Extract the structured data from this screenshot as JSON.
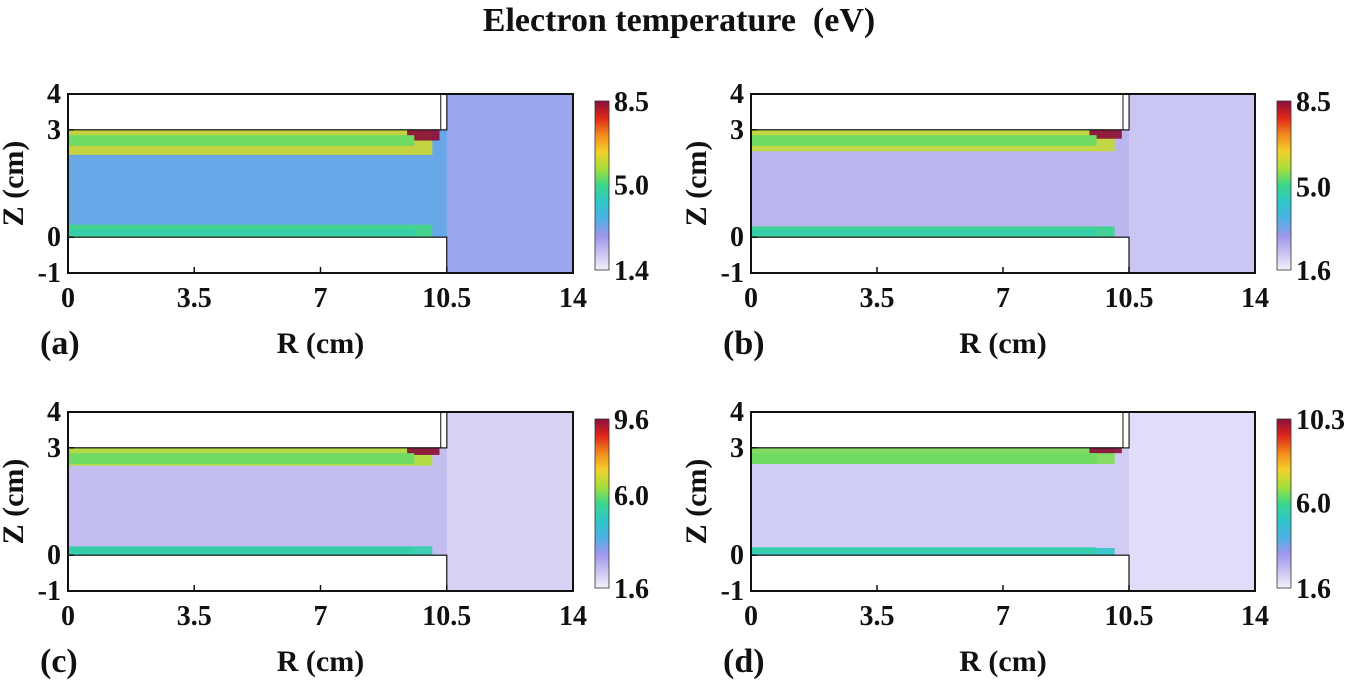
{
  "figure": {
    "title": "Electron temperature  (eV)"
  },
  "colors": {
    "colormap": [
      "#f4f1fb",
      "#c9c3f1",
      "#9f97ec",
      "#4fb0e6",
      "#2ec7c9",
      "#3ad68a",
      "#a6df3a",
      "#f4cf2a",
      "#f28a1c",
      "#e0261a",
      "#8b0f3a"
    ]
  },
  "chart_data": [
    {
      "panel": "(a)",
      "type": "heatmap",
      "xlabel": "R (cm)",
      "ylabel": "Z (cm)",
      "xlim": [
        0,
        14
      ],
      "ylim": [
        -1,
        4
      ],
      "xticks": [
        "0",
        "3.5",
        "7",
        "10.5",
        "14"
      ],
      "yticks": [
        "4",
        "3",
        "0",
        "-1"
      ],
      "colorbar": {
        "min": 1.4,
        "max": 8.5,
        "ticks": [
          "8.5",
          "5.0",
          "1.4"
        ]
      },
      "background_value": 3.3,
      "field": [
        {
          "r0": 0,
          "r1": 10.1,
          "z0": 2.3,
          "z1": 3.0,
          "value": 6.0
        },
        {
          "r0": 0,
          "r1": 10.1,
          "z0": 0.0,
          "z1": 0.35,
          "value": 5.0
        },
        {
          "r0": 9.4,
          "r1": 10.3,
          "z0": 2.7,
          "z1": 3.0,
          "value": 8.5
        },
        {
          "r0": 10.5,
          "r1": 14,
          "z0": -1,
          "z1": 4,
          "value": 2.6
        }
      ]
    },
    {
      "panel": "(b)",
      "type": "heatmap",
      "xlabel": "R (cm)",
      "ylabel": "Z (cm)",
      "xlim": [
        0,
        14
      ],
      "ylim": [
        -1,
        4
      ],
      "xticks": [
        "0",
        "3.5",
        "7",
        "10.5",
        "14"
      ],
      "yticks": [
        "4",
        "3",
        "0",
        "-1"
      ],
      "colorbar": {
        "min": 1.6,
        "max": 8.5,
        "ticks": [
          "8.5",
          "5.0",
          "1.6"
        ]
      },
      "background_value": 2.5,
      "field": [
        {
          "r0": 0,
          "r1": 10.1,
          "z0": 2.4,
          "z1": 3.0,
          "value": 6.0
        },
        {
          "r0": 0,
          "r1": 10.1,
          "z0": 0.0,
          "z1": 0.3,
          "value": 5.0
        },
        {
          "r0": 9.4,
          "r1": 10.3,
          "z0": 2.75,
          "z1": 3.0,
          "value": 8.5
        },
        {
          "r0": 10.5,
          "r1": 14,
          "z0": -1,
          "z1": 4,
          "value": 2.2
        }
      ]
    },
    {
      "panel": "(c)",
      "type": "heatmap",
      "xlabel": "R (cm)",
      "ylabel": "Z (cm)",
      "xlim": [
        0,
        14
      ],
      "ylim": [
        -1,
        4
      ],
      "xticks": [
        "0",
        "3.5",
        "7",
        "10.5",
        "14"
      ],
      "yticks": [
        "4",
        "3",
        "0",
        "-1"
      ],
      "colorbar": {
        "min": 1.6,
        "max": 9.6,
        "ticks": [
          "9.6",
          "6.0",
          "1.6"
        ]
      },
      "background_value": 2.5,
      "field": [
        {
          "r0": 0,
          "r1": 10.1,
          "z0": 2.5,
          "z1": 3.0,
          "value": 6.5
        },
        {
          "r0": 0,
          "r1": 10.1,
          "z0": 0.0,
          "z1": 0.25,
          "value": 5.2
        },
        {
          "r0": 9.4,
          "r1": 10.3,
          "z0": 2.8,
          "z1": 3.0,
          "value": 9.6
        },
        {
          "r0": 10.5,
          "r1": 14,
          "z0": -1,
          "z1": 4,
          "value": 2.0
        }
      ]
    },
    {
      "panel": "(d)",
      "type": "heatmap",
      "xlabel": "R (cm)",
      "ylabel": "Z (cm)",
      "xlim": [
        0,
        14
      ],
      "ylim": [
        -1,
        4
      ],
      "xticks": [
        "0",
        "3.5",
        "7",
        "10.5",
        "14"
      ],
      "yticks": [
        "4",
        "3",
        "0",
        "-1"
      ],
      "colorbar": {
        "min": 1.6,
        "max": 10.3,
        "ticks": [
          "10.3",
          "6.0",
          "1.6"
        ]
      },
      "background_value": 2.3,
      "field": [
        {
          "r0": 0,
          "r1": 10.1,
          "z0": 2.55,
          "z1": 3.0,
          "value": 6.5
        },
        {
          "r0": 0,
          "r1": 10.1,
          "z0": 0.0,
          "z1": 0.2,
          "value": 5.0
        },
        {
          "r0": 9.4,
          "r1": 10.3,
          "z0": 2.85,
          "z1": 3.0,
          "value": 10.3
        },
        {
          "r0": 10.5,
          "r1": 14,
          "z0": -1,
          "z1": 4,
          "value": 1.9
        }
      ]
    }
  ]
}
